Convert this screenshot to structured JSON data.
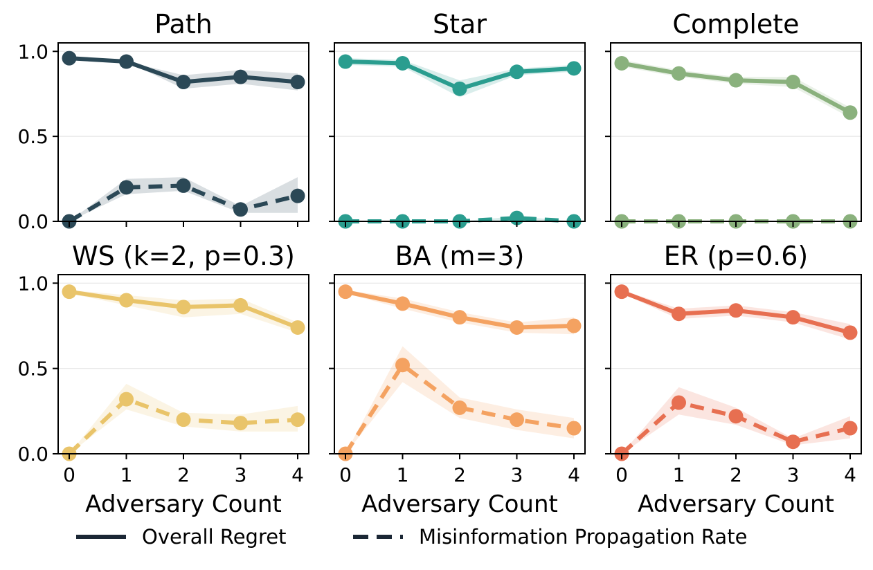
{
  "chart_data": [
    {
      "type": "line",
      "title": "Path",
      "color": "#2b4856",
      "xlabel": "",
      "ylabel": "",
      "x": [
        0,
        1,
        2,
        3,
        4
      ],
      "ylim": [
        0,
        1.05
      ],
      "yticks": [
        "0.0",
        "0.5",
        "1.0"
      ],
      "series": [
        {
          "name": "Overall Regret",
          "style": "solid",
          "values": [
            0.96,
            0.94,
            0.82,
            0.85,
            0.82
          ],
          "lower": [
            0.96,
            0.94,
            0.78,
            0.81,
            0.77
          ],
          "upper": [
            0.96,
            0.94,
            0.86,
            0.89,
            0.87
          ]
        },
        {
          "name": "Misinformation Propagation Rate",
          "style": "dashed",
          "values": [
            0.0,
            0.2,
            0.21,
            0.07,
            0.15
          ],
          "lower": [
            0.0,
            0.16,
            0.18,
            0.05,
            0.05
          ],
          "upper": [
            0.0,
            0.25,
            0.26,
            0.09,
            0.26
          ]
        }
      ]
    },
    {
      "type": "line",
      "title": "Star",
      "color": "#2a9d8f",
      "xlabel": "",
      "ylabel": "",
      "x": [
        0,
        1,
        2,
        3,
        4
      ],
      "ylim": [
        0,
        1.05
      ],
      "yticks": [
        "0.0",
        "0.5",
        "1.0"
      ],
      "series": [
        {
          "name": "Overall Regret",
          "style": "solid",
          "values": [
            0.94,
            0.93,
            0.78,
            0.88,
            0.9
          ],
          "lower": [
            0.92,
            0.91,
            0.73,
            0.86,
            0.88
          ],
          "upper": [
            0.96,
            0.95,
            0.83,
            0.9,
            0.92
          ]
        },
        {
          "name": "Misinformation Propagation Rate",
          "style": "dashed",
          "values": [
            0.0,
            0.0,
            0.0,
            0.02,
            0.0
          ],
          "lower": [
            0.0,
            0.0,
            0.0,
            0.0,
            0.0
          ],
          "upper": [
            0.0,
            0.0,
            0.0,
            0.03,
            0.0
          ]
        }
      ]
    },
    {
      "type": "line",
      "title": "Complete",
      "color": "#8ab17d",
      "xlabel": "",
      "ylabel": "",
      "x": [
        0,
        1,
        2,
        3,
        4
      ],
      "ylim": [
        0,
        1.05
      ],
      "yticks": [
        "0.0",
        "0.5",
        "1.0"
      ],
      "series": [
        {
          "name": "Overall Regret",
          "style": "solid",
          "values": [
            0.93,
            0.87,
            0.83,
            0.82,
            0.64
          ],
          "lower": [
            0.91,
            0.85,
            0.81,
            0.79,
            0.61
          ],
          "upper": [
            0.95,
            0.89,
            0.85,
            0.85,
            0.67
          ]
        },
        {
          "name": "Misinformation Propagation Rate",
          "style": "dashed",
          "values": [
            0.0,
            0.0,
            0.0,
            0.0,
            0.0
          ],
          "lower": [
            0.0,
            0.0,
            0.0,
            0.0,
            0.0
          ],
          "upper": [
            0.0,
            0.0,
            0.0,
            0.0,
            0.0
          ]
        }
      ]
    },
    {
      "type": "line",
      "title": "WS (k=2, p=0.3)",
      "color": "#e9c46a",
      "xlabel": "Adversary Count",
      "ylabel": "",
      "x": [
        0,
        1,
        2,
        3,
        4
      ],
      "ylim": [
        0,
        1.05
      ],
      "yticks": [
        "0.0",
        "0.5",
        "1.0"
      ],
      "series": [
        {
          "name": "Overall Regret",
          "style": "solid",
          "values": [
            0.95,
            0.9,
            0.86,
            0.87,
            0.74
          ],
          "lower": [
            0.94,
            0.87,
            0.8,
            0.82,
            0.71
          ],
          "upper": [
            0.96,
            0.93,
            0.9,
            0.91,
            0.77
          ]
        },
        {
          "name": "Misinformation Propagation Rate",
          "style": "dashed",
          "values": [
            0.0,
            0.32,
            0.2,
            0.18,
            0.2
          ],
          "lower": [
            0.0,
            0.26,
            0.16,
            0.13,
            0.13
          ],
          "upper": [
            0.0,
            0.41,
            0.24,
            0.23,
            0.28
          ]
        }
      ]
    },
    {
      "type": "line",
      "title": "BA (m=3)",
      "color": "#f4a261",
      "xlabel": "Adversary Count",
      "ylabel": "",
      "x": [
        0,
        1,
        2,
        3,
        4
      ],
      "ylim": [
        0,
        1.05
      ],
      "yticks": [
        "0.0",
        "0.5",
        "1.0"
      ],
      "series": [
        {
          "name": "Overall Regret",
          "style": "solid",
          "values": [
            0.95,
            0.88,
            0.8,
            0.74,
            0.75
          ],
          "lower": [
            0.94,
            0.85,
            0.77,
            0.71,
            0.7
          ],
          "upper": [
            0.96,
            0.91,
            0.83,
            0.77,
            0.8
          ]
        },
        {
          "name": "Misinformation Propagation Rate",
          "style": "dashed",
          "values": [
            0.0,
            0.52,
            0.27,
            0.2,
            0.15
          ],
          "lower": [
            0.0,
            0.42,
            0.21,
            0.14,
            0.09
          ],
          "upper": [
            0.0,
            0.63,
            0.33,
            0.26,
            0.21
          ]
        }
      ]
    },
    {
      "type": "line",
      "title": "ER (p=0.6)",
      "color": "#e76f51",
      "xlabel": "Adversary Count",
      "ylabel": "",
      "x": [
        0,
        1,
        2,
        3,
        4
      ],
      "ylim": [
        0,
        1.05
      ],
      "yticks": [
        "0.0",
        "0.5",
        "1.0"
      ],
      "series": [
        {
          "name": "Overall Regret",
          "style": "solid",
          "values": [
            0.95,
            0.82,
            0.84,
            0.8,
            0.71
          ],
          "lower": [
            0.94,
            0.79,
            0.81,
            0.77,
            0.67
          ],
          "upper": [
            0.96,
            0.85,
            0.87,
            0.83,
            0.76
          ]
        },
        {
          "name": "Misinformation Propagation Rate",
          "style": "dashed",
          "values": [
            0.0,
            0.3,
            0.22,
            0.07,
            0.15
          ],
          "lower": [
            0.0,
            0.23,
            0.17,
            0.05,
            0.09
          ],
          "upper": [
            0.0,
            0.39,
            0.27,
            0.09,
            0.22
          ]
        }
      ]
    }
  ],
  "legend": {
    "color": "#1b2735",
    "items": [
      {
        "label": "Overall Regret",
        "style": "solid"
      },
      {
        "label": "Misinformation Propagation Rate",
        "style": "dashed"
      }
    ]
  }
}
